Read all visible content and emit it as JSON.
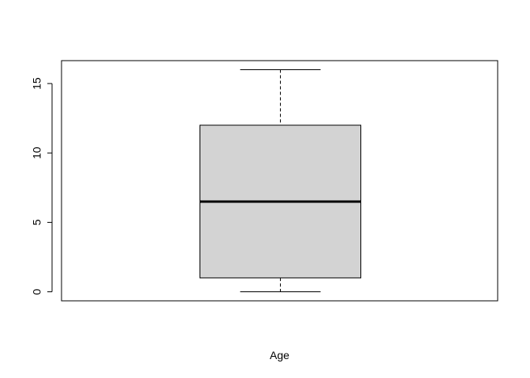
{
  "chart_data": {
    "type": "boxplot",
    "xlabel": "Age",
    "ylabel": "",
    "title": "",
    "ylim": [
      -0.65,
      16.65
    ],
    "yticks": [
      0,
      5,
      10,
      15
    ],
    "ytick_labels": [
      "0",
      "5",
      "10",
      "15"
    ],
    "series": [
      {
        "min": 0,
        "q1": 1,
        "median": 6.5,
        "q3": 12,
        "max": 16
      }
    ],
    "grid": false,
    "box_fill_color": "#d3d3d3",
    "line_color": "#000000"
  }
}
